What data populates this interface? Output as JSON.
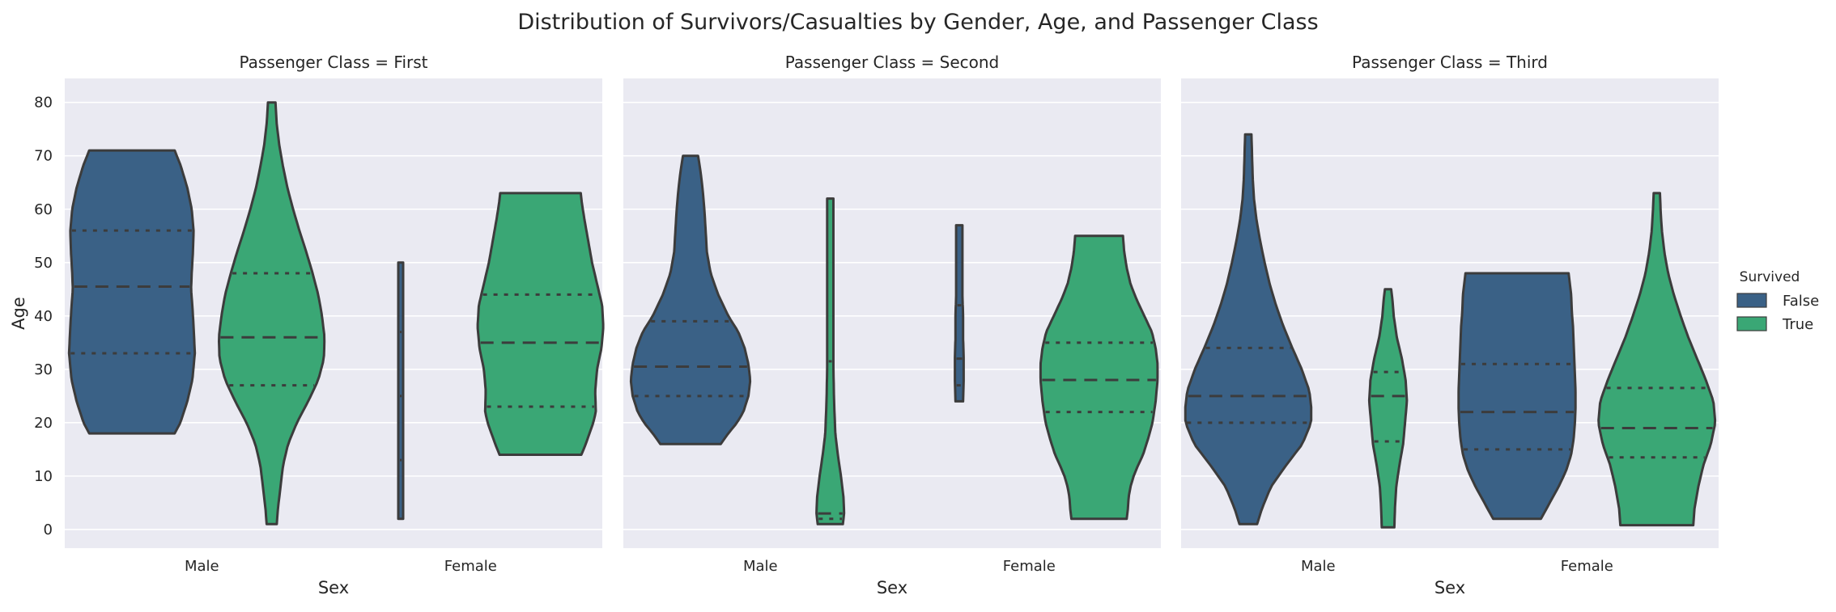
{
  "chart_data": {
    "type": "violin",
    "title": "Distribution of Survivors/Casualties by Gender, Age, and Passenger Class",
    "xlabel": "Sex",
    "ylabel": "Age",
    "ylim": [
      -3.5,
      84.5
    ],
    "yticks": [
      0,
      10,
      20,
      30,
      40,
      50,
      60,
      70,
      80
    ],
    "categories": [
      "Male",
      "Female"
    ],
    "grid": true,
    "legend": {
      "title": "Survived",
      "placement": "right",
      "entries": [
        {
          "label": "False",
          "color": "#3a6186"
        },
        {
          "label": "True",
          "color": "#3aa775"
        }
      ]
    },
    "panels": [
      {
        "title": "Passenger Class = First",
        "violins": [
          {
            "sex": "Male",
            "survived": "False",
            "min": 18,
            "q1": 33,
            "median": 45.5,
            "q3": 56,
            "max": 71,
            "profile": [
              [
                18,
                0.68
              ],
              [
                20,
                0.77
              ],
              [
                24,
                0.88
              ],
              [
                28,
                0.96
              ],
              [
                33,
                1.0
              ],
              [
                38,
                0.98
              ],
              [
                42,
                0.96
              ],
              [
                45,
                0.94
              ],
              [
                48,
                0.95
              ],
              [
                52,
                0.97
              ],
              [
                56,
                0.98
              ],
              [
                60,
                0.95
              ],
              [
                64,
                0.88
              ],
              [
                68,
                0.78
              ],
              [
                71,
                0.68
              ]
            ]
          },
          {
            "sex": "Male",
            "survived": "True",
            "min": 1,
            "q1": 27,
            "median": 36,
            "q3": 48,
            "max": 80,
            "profile": [
              [
                1,
                0.08
              ],
              [
                4,
                0.1
              ],
              [
                8,
                0.14
              ],
              [
                12,
                0.18
              ],
              [
                16,
                0.26
              ],
              [
                20,
                0.4
              ],
              [
                24,
                0.58
              ],
              [
                28,
                0.74
              ],
              [
                32,
                0.83
              ],
              [
                36,
                0.84
              ],
              [
                40,
                0.8
              ],
              [
                44,
                0.74
              ],
              [
                48,
                0.65
              ],
              [
                52,
                0.55
              ],
              [
                56,
                0.44
              ],
              [
                60,
                0.34
              ],
              [
                64,
                0.25
              ],
              [
                68,
                0.18
              ],
              [
                72,
                0.12
              ],
              [
                76,
                0.08
              ],
              [
                80,
                0.06
              ]
            ]
          },
          {
            "sex": "Female",
            "survived": "False",
            "min": 2,
            "q1": 13,
            "median": 25,
            "q3": 37,
            "max": 50,
            "profile": [
              [
                2,
                0.03
              ],
              [
                25,
                0.03
              ],
              [
                50,
                0.03
              ]
            ]
          },
          {
            "sex": "Female",
            "survived": "True",
            "min": 14,
            "q1": 23,
            "median": 35,
            "q3": 44,
            "max": 63,
            "profile": [
              [
                14,
                0.65
              ],
              [
                16,
                0.72
              ],
              [
                18,
                0.78
              ],
              [
                20,
                0.84
              ],
              [
                22,
                0.88
              ],
              [
                26,
                0.87
              ],
              [
                30,
                0.9
              ],
              [
                34,
                0.97
              ],
              [
                38,
                1.0
              ],
              [
                42,
                0.98
              ],
              [
                46,
                0.9
              ],
              [
                50,
                0.82
              ],
              [
                54,
                0.76
              ],
              [
                58,
                0.7
              ],
              [
                61,
                0.66
              ],
              [
                63,
                0.64
              ]
            ]
          }
        ]
      },
      {
        "title": "Passenger Class = Second",
        "violins": [
          {
            "sex": "Male",
            "survived": "False",
            "min": 16,
            "q1": 25,
            "median": 30.5,
            "q3": 39,
            "max": 70,
            "profile": [
              [
                16,
                0.48
              ],
              [
                18,
                0.6
              ],
              [
                20,
                0.74
              ],
              [
                22,
                0.84
              ],
              [
                25,
                0.92
              ],
              [
                28,
                0.95
              ],
              [
                31,
                0.92
              ],
              [
                34,
                0.86
              ],
              [
                37,
                0.76
              ],
              [
                40,
                0.6
              ],
              [
                44,
                0.44
              ],
              [
                48,
                0.32
              ],
              [
                52,
                0.26
              ],
              [
                56,
                0.24
              ],
              [
                60,
                0.22
              ],
              [
                64,
                0.19
              ],
              [
                67,
                0.16
              ],
              [
                70,
                0.12
              ]
            ]
          },
          {
            "sex": "Male",
            "survived": "True",
            "min": 1,
            "q1": 2,
            "median": 3,
            "q3": 31.5,
            "max": 62,
            "profile": [
              [
                1,
                0.2
              ],
              [
                3,
                0.22
              ],
              [
                6,
                0.21
              ],
              [
                10,
                0.17
              ],
              [
                14,
                0.12
              ],
              [
                18,
                0.08
              ],
              [
                24,
                0.06
              ],
              [
                30,
                0.05
              ],
              [
                36,
                0.05
              ],
              [
                42,
                0.05
              ],
              [
                50,
                0.05
              ],
              [
                56,
                0.05
              ],
              [
                62,
                0.05
              ]
            ]
          },
          {
            "sex": "Female",
            "survived": "False",
            "min": 24,
            "q1": 27,
            "median": 32,
            "q3": 42,
            "max": 57,
            "profile": [
              [
                24,
                0.06
              ],
              [
                28,
                0.07
              ],
              [
                32,
                0.07
              ],
              [
                36,
                0.06
              ],
              [
                40,
                0.06
              ],
              [
                44,
                0.05
              ],
              [
                48,
                0.05
              ],
              [
                52,
                0.05
              ],
              [
                57,
                0.05
              ]
            ]
          },
          {
            "sex": "Female",
            "survived": "True",
            "min": 2,
            "q1": 22,
            "median": 28,
            "q3": 35,
            "max": 55,
            "profile": [
              [
                2,
                0.44
              ],
              [
                4,
                0.46
              ],
              [
                6,
                0.47
              ],
              [
                8,
                0.5
              ],
              [
                10,
                0.55
              ],
              [
                12,
                0.62
              ],
              [
                14,
                0.7
              ],
              [
                17,
                0.78
              ],
              [
                20,
                0.85
              ],
              [
                24,
                0.9
              ],
              [
                28,
                0.93
              ],
              [
                31,
                0.93
              ],
              [
                34,
                0.9
              ],
              [
                37,
                0.84
              ],
              [
                40,
                0.72
              ],
              [
                43,
                0.6
              ],
              [
                46,
                0.5
              ],
              [
                49,
                0.44
              ],
              [
                52,
                0.4
              ],
              [
                55,
                0.38
              ]
            ]
          }
        ]
      },
      {
        "title": "Passenger Class = Third",
        "violins": [
          {
            "sex": "Male",
            "survived": "False",
            "min": 1,
            "q1": 20,
            "median": 25,
            "q3": 34,
            "max": 74,
            "profile": [
              [
                1,
                0.14
              ],
              [
                4,
                0.22
              ],
              [
                8,
                0.36
              ],
              [
                12,
                0.6
              ],
              [
                16,
                0.86
              ],
              [
                20,
                1.0
              ],
              [
                23,
                1.0
              ],
              [
                26,
                0.97
              ],
              [
                30,
                0.85
              ],
              [
                34,
                0.7
              ],
              [
                38,
                0.56
              ],
              [
                42,
                0.44
              ],
              [
                46,
                0.34
              ],
              [
                50,
                0.26
              ],
              [
                54,
                0.19
              ],
              [
                58,
                0.13
              ],
              [
                62,
                0.09
              ],
              [
                66,
                0.07
              ],
              [
                70,
                0.06
              ],
              [
                74,
                0.05
              ]
            ]
          },
          {
            "sex": "Male",
            "survived": "True",
            "min": 0.4,
            "q1": 16.5,
            "median": 25,
            "q3": 29.5,
            "max": 45,
            "profile": [
              [
                0.4,
                0.1
              ],
              [
                4,
                0.11
              ],
              [
                8,
                0.13
              ],
              [
                12,
                0.18
              ],
              [
                16,
                0.24
              ],
              [
                20,
                0.27
              ],
              [
                24,
                0.3
              ],
              [
                28,
                0.28
              ],
              [
                32,
                0.22
              ],
              [
                36,
                0.14
              ],
              [
                40,
                0.09
              ],
              [
                43,
                0.07
              ],
              [
                45,
                0.05
              ]
            ]
          },
          {
            "sex": "Female",
            "survived": "False",
            "min": 2,
            "q1": 15,
            "median": 22,
            "q3": 31,
            "max": 48,
            "profile": [
              [
                2,
                0.38
              ],
              [
                5,
                0.52
              ],
              [
                8,
                0.66
              ],
              [
                11,
                0.78
              ],
              [
                14,
                0.86
              ],
              [
                17,
                0.9
              ],
              [
                20,
                0.92
              ],
              [
                23,
                0.93
              ],
              [
                26,
                0.93
              ],
              [
                29,
                0.92
              ],
              [
                32,
                0.91
              ],
              [
                35,
                0.9
              ],
              [
                38,
                0.89
              ],
              [
                41,
                0.87
              ],
              [
                44,
                0.86
              ],
              [
                46,
                0.84
              ],
              [
                48,
                0.82
              ]
            ]
          },
          {
            "sex": "Female",
            "survived": "True",
            "min": 0.8,
            "q1": 13.5,
            "median": 19,
            "q3": 26.5,
            "max": 63,
            "profile": [
              [
                0.8,
                0.58
              ],
              [
                4,
                0.6
              ],
              [
                8,
                0.66
              ],
              [
                12,
                0.74
              ],
              [
                16,
                0.86
              ],
              [
                20,
                0.93
              ],
              [
                24,
                0.9
              ],
              [
                28,
                0.78
              ],
              [
                32,
                0.64
              ],
              [
                36,
                0.5
              ],
              [
                40,
                0.38
              ],
              [
                44,
                0.27
              ],
              [
                48,
                0.18
              ],
              [
                52,
                0.12
              ],
              [
                56,
                0.08
              ],
              [
                60,
                0.06
              ],
              [
                63,
                0.05
              ]
            ]
          }
        ]
      }
    ]
  }
}
